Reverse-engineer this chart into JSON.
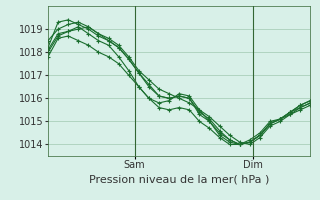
{
  "background_color": "#d8f0e8",
  "grid_color": "#a0c8b0",
  "line_color": "#1a6e2e",
  "marker_color": "#1a6e2e",
  "xlabel": "Pression niveau de la mer( hPa )",
  "ylim": [
    1013.5,
    1020.0
  ],
  "yticks": [
    1014,
    1015,
    1016,
    1017,
    1018,
    1019
  ],
  "xlabel_fontsize": 8,
  "tick_fontsize": 7,
  "figsize": [
    3.2,
    2.0
  ],
  "dpi": 100,
  "vline_positions": [
    0.33,
    0.78
  ],
  "vline_labels": [
    "Sam",
    "Dim"
  ],
  "series": [
    [
      1018.0,
      1018.7,
      1018.9,
      1019.1,
      1018.8,
      1018.5,
      1018.3,
      1017.8,
      1017.2,
      1016.5,
      1016.0,
      1015.8,
      1015.9,
      1016.2,
      1016.1,
      1015.5,
      1015.0,
      1014.4,
      1014.1,
      1014.0,
      1014.2,
      1014.5,
      1015.0,
      1015.1,
      1015.3,
      1015.5,
      1015.7
    ],
    [
      1018.5,
      1019.0,
      1019.2,
      1019.3,
      1019.1,
      1018.8,
      1018.6,
      1018.3,
      1017.8,
      1017.2,
      1016.8,
      1016.4,
      1016.2,
      1016.0,
      1015.8,
      1015.5,
      1015.2,
      1014.8,
      1014.4,
      1014.1,
      1014.0,
      1014.3,
      1014.8,
      1015.0,
      1015.3,
      1015.6,
      1015.8
    ],
    [
      1018.2,
      1019.3,
      1019.4,
      1019.2,
      1019.0,
      1018.7,
      1018.5,
      1018.2,
      1017.7,
      1017.1,
      1016.6,
      1016.1,
      1016.0,
      1016.1,
      1016.0,
      1015.3,
      1015.0,
      1014.5,
      1014.2,
      1014.0,
      1014.1,
      1014.4,
      1014.9,
      1015.1,
      1015.4,
      1015.7,
      1015.9
    ],
    [
      1017.8,
      1018.6,
      1018.7,
      1018.5,
      1018.3,
      1018.0,
      1017.8,
      1017.5,
      1017.0,
      1016.5,
      1016.0,
      1015.6,
      1015.5,
      1015.6,
      1015.5,
      1015.0,
      1014.7,
      1014.3,
      1014.0,
      1014.0,
      1014.1,
      1014.4,
      1014.9,
      1015.1,
      1015.4,
      1015.6,
      1015.8
    ],
    [
      1018.1,
      1018.8,
      1018.9,
      1019.0,
      1019.1,
      1018.8,
      1018.5,
      1018.2,
      1017.7,
      1017.1,
      1016.5,
      1016.1,
      1016.0,
      1016.1,
      1016.0,
      1015.4,
      1015.1,
      1014.6,
      1014.2,
      1014.0,
      1014.1,
      1014.4,
      1014.9,
      1015.1,
      1015.4,
      1015.7,
      1015.9
    ]
  ]
}
